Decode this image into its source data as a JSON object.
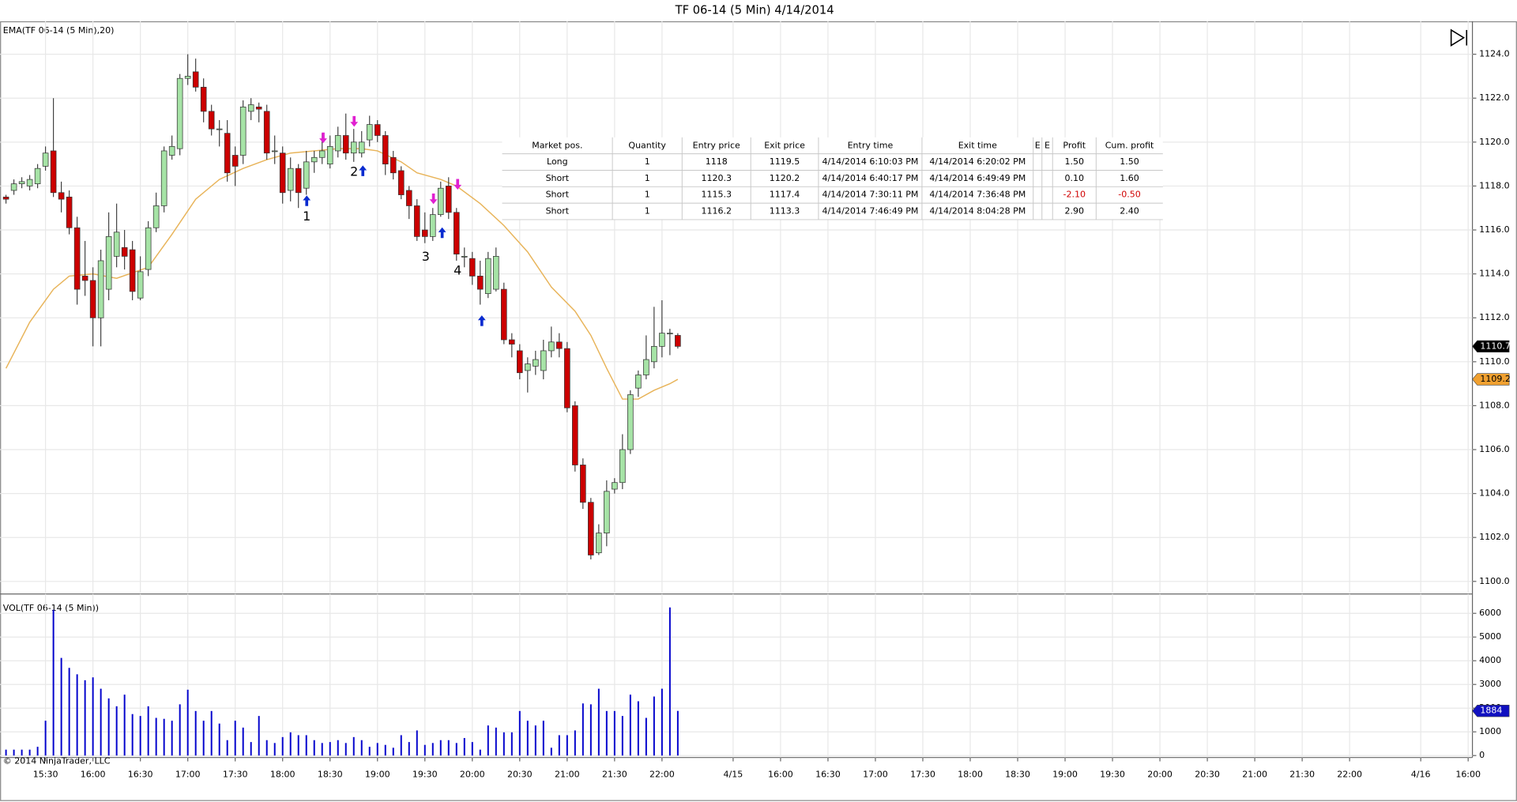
{
  "chart_data": {
    "type": "candlestick",
    "title": "TF 06-14 (5 Min)  4/14/2014",
    "copyright": "© 2014 NinjaTrader, LLC",
    "grid": true,
    "xlim": [
      -5.75,
      180.54
    ],
    "xticks": [
      {
        "value": 0,
        "label": "15:30"
      },
      {
        "value": 6,
        "label": "16:00"
      },
      {
        "value": 12,
        "label": "16:30"
      },
      {
        "value": 18,
        "label": "17:00"
      },
      {
        "value": 24,
        "label": "17:30"
      },
      {
        "value": 30,
        "label": "18:00"
      },
      {
        "value": 36,
        "label": "18:30"
      },
      {
        "value": 42,
        "label": "19:00"
      },
      {
        "value": 48,
        "label": "19:30"
      },
      {
        "value": 54,
        "label": "20:00"
      },
      {
        "value": 60,
        "label": "20:30"
      },
      {
        "value": 66,
        "label": "21:00"
      },
      {
        "value": 72,
        "label": "21:30"
      },
      {
        "value": 78,
        "label": "22:00"
      },
      {
        "value": 87,
        "label": "4/15"
      },
      {
        "value": 93,
        "label": "16:00"
      },
      {
        "value": 99,
        "label": "16:30"
      },
      {
        "value": 105,
        "label": "17:00"
      },
      {
        "value": 111,
        "label": "17:30"
      },
      {
        "value": 117,
        "label": "18:00"
      },
      {
        "value": 123,
        "label": "18:30"
      },
      {
        "value": 129,
        "label": "19:00"
      },
      {
        "value": 135,
        "label": "19:30"
      },
      {
        "value": 141,
        "label": "20:00"
      },
      {
        "value": 147,
        "label": "20:30"
      },
      {
        "value": 153,
        "label": "21:00"
      },
      {
        "value": 159,
        "label": "21:30"
      },
      {
        "value": 165,
        "label": "22:00"
      },
      {
        "value": 174,
        "label": "4/16"
      },
      {
        "value": 180,
        "label": "16:00"
      }
    ],
    "price": {
      "label": "EMA(TF 06-14 (5 Min),20)",
      "color_up": "#a6e3a6",
      "color_down": "#cc0000",
      "ylim": [
        1099.47,
        1125.5
      ],
      "yticks": [
        {
          "value": 1100,
          "label": "1100.0"
        },
        {
          "value": 1102,
          "label": "1102.0"
        },
        {
          "value": 1104,
          "label": "1104.0"
        },
        {
          "value": 1106,
          "label": "1106.0"
        },
        {
          "value": 1108,
          "label": "1108.0"
        },
        {
          "value": 1110,
          "label": "1110.0"
        },
        {
          "value": 1112,
          "label": "1112.0"
        },
        {
          "value": 1114,
          "label": "1114.0"
        },
        {
          "value": 1116,
          "label": "1116.0"
        },
        {
          "value": 1118,
          "label": "1118.0"
        },
        {
          "value": 1120,
          "label": "1120.0"
        },
        {
          "value": 1122,
          "label": "1122.0"
        },
        {
          "value": 1124,
          "label": "1124.0"
        }
      ],
      "x": [
        -5,
        -4,
        -3,
        -2,
        -1,
        0,
        1,
        2,
        3,
        4,
        5,
        6,
        7,
        8,
        9,
        10,
        11,
        12,
        13,
        14,
        15,
        16,
        17,
        18,
        19,
        20,
        21,
        22,
        23,
        24,
        25,
        26,
        27,
        28,
        29,
        30,
        31,
        32,
        33,
        34,
        35,
        36,
        37,
        38,
        39,
        40,
        41,
        42,
        43,
        44,
        45,
        46,
        47,
        48,
        49,
        50,
        51,
        52,
        53,
        54,
        55,
        56,
        57,
        58,
        59,
        60,
        61,
        62,
        63,
        64,
        65,
        66,
        67,
        68,
        69,
        70,
        71,
        72,
        73,
        74,
        75,
        76,
        77,
        78,
        79,
        80
      ],
      "open": [
        1117.5,
        1117.8,
        1118.1,
        1118.0,
        1118.1,
        1118.9,
        1119.6,
        1117.7,
        1117.5,
        1116.1,
        1113.9,
        1113.7,
        1112.0,
        1113.3,
        1114.8,
        1115.2,
        1115.1,
        1112.9,
        1114.2,
        1116.1,
        1117.1,
        1119.4,
        1119.7,
        1122.9,
        1123.2,
        1122.5,
        1121.4,
        1120.6,
        1120.4,
        1119.4,
        1119.4,
        1121.4,
        1121.6,
        1121.4,
        1119.6,
        1119.5,
        1117.8,
        1118.8,
        1117.9,
        1119.1,
        1119.3,
        1119.0,
        1119.6,
        1120.3,
        1119.5,
        1119.5,
        1120.1,
        1120.8,
        1120.3,
        1119.3,
        1118.7,
        1117.8,
        1117.1,
        1116.0,
        1115.7,
        1116.7,
        1118.0,
        1116.8,
        1114.8,
        1114.7,
        1113.9,
        1113.1,
        1113.3,
        1113.3,
        1111.0,
        1110.5,
        1109.6,
        1109.8,
        1109.6,
        1110.5,
        1110.9,
        1110.6,
        1108.0,
        1105.3,
        1103.6,
        1101.3,
        1102.2,
        1104.2,
        1104.5,
        1106.0,
        1108.8,
        1109.4,
        1110.0,
        1110.7,
        1111.3,
        1111.2
      ],
      "high": [
        1117.6,
        1118.3,
        1118.4,
        1118.5,
        1119.0,
        1119.8,
        1122.0,
        1118.2,
        1117.8,
        1116.6,
        1115.5,
        1114.3,
        1115.1,
        1116.8,
        1117.2,
        1116.0,
        1115.5,
        1114.8,
        1116.4,
        1117.7,
        1119.8,
        1120.3,
        1123.1,
        1124.0,
        1123.8,
        1122.9,
        1121.7,
        1121.0,
        1121.0,
        1119.8,
        1121.9,
        1122.0,
        1121.8,
        1121.7,
        1120.3,
        1119.8,
        1119.3,
        1119.0,
        1119.6,
        1119.6,
        1120.4,
        1120.3,
        1120.7,
        1121.3,
        1120.6,
        1120.5,
        1121.2,
        1121.0,
        1120.5,
        1119.6,
        1118.9,
        1118.0,
        1117.4,
        1116.8,
        1117.0,
        1118.2,
        1118.4,
        1117.0,
        1115.2,
        1115.0,
        1114.6,
        1115.0,
        1115.2,
        1113.6,
        1111.3,
        1110.8,
        1110.2,
        1110.5,
        1111.0,
        1111.6,
        1111.3,
        1110.9,
        1108.2,
        1105.6,
        1103.8,
        1102.6,
        1104.6,
        1104.7,
        1106.7,
        1108.7,
        1109.6,
        1111.2,
        1112.5,
        1112.8,
        1111.5,
        1111.3
      ],
      "low": [
        1117.2,
        1117.6,
        1117.9,
        1117.8,
        1117.9,
        1118.7,
        1117.5,
        1116.8,
        1115.8,
        1112.6,
        1113.0,
        1110.7,
        1110.7,
        1112.8,
        1114.3,
        1114.2,
        1112.8,
        1112.8,
        1113.9,
        1115.9,
        1116.8,
        1119.2,
        1119.4,
        1122.6,
        1122.3,
        1120.9,
        1120.3,
        1119.8,
        1118.2,
        1118.0,
        1119.0,
        1121.0,
        1120.9,
        1119.2,
        1119.0,
        1117.2,
        1117.3,
        1117.0,
        1117.6,
        1118.6,
        1119.0,
        1118.8,
        1119.3,
        1119.2,
        1119.1,
        1119.3,
        1119.8,
        1120.0,
        1118.5,
        1118.3,
        1117.4,
        1116.5,
        1115.5,
        1115.4,
        1115.5,
        1116.6,
        1116.5,
        1114.6,
        1114.3,
        1113.5,
        1112.6,
        1112.9,
        1113.2,
        1110.8,
        1110.2,
        1109.2,
        1108.6,
        1109.4,
        1109.2,
        1110.2,
        1110.2,
        1107.7,
        1105.0,
        1103.3,
        1101.0,
        1101.2,
        1101.6,
        1104.0,
        1104.2,
        1105.8,
        1108.4,
        1109.2,
        1109.7,
        1110.2,
        1110.3,
        1110.6
      ],
      "close": [
        1117.4,
        1118.1,
        1118.2,
        1118.3,
        1118.8,
        1119.5,
        1117.7,
        1117.4,
        1116.1,
        1113.3,
        1113.7,
        1112.0,
        1114.6,
        1115.7,
        1115.9,
        1114.8,
        1113.2,
        1114.1,
        1116.1,
        1117.1,
        1119.6,
        1119.8,
        1122.9,
        1123.0,
        1122.5,
        1121.4,
        1120.6,
        1120.6,
        1118.6,
        1118.9,
        1121.6,
        1121.7,
        1121.5,
        1119.5,
        1119.6,
        1117.7,
        1118.8,
        1117.7,
        1119.1,
        1119.3,
        1119.6,
        1119.8,
        1120.3,
        1119.5,
        1120.0,
        1120.0,
        1120.8,
        1120.3,
        1119.0,
        1118.6,
        1117.6,
        1117.1,
        1115.7,
        1115.7,
        1116.7,
        1117.9,
        1116.8,
        1114.9,
        1114.8,
        1113.9,
        1113.3,
        1114.7,
        1114.8,
        1111.0,
        1110.8,
        1109.5,
        1109.9,
        1110.1,
        1110.5,
        1110.9,
        1110.6,
        1107.9,
        1105.3,
        1103.6,
        1101.2,
        1102.2,
        1104.1,
        1104.5,
        1106.0,
        1108.5,
        1109.4,
        1110.1,
        1110.7,
        1111.3,
        1111.3,
        1110.7
      ]
    },
    "ema": {
      "color": "#e8b45a",
      "x": [
        -5,
        -2,
        1,
        3,
        6,
        9,
        13,
        16,
        19,
        22,
        25,
        28,
        31,
        34,
        37,
        40,
        42,
        45,
        47,
        50,
        52,
        55,
        58,
        61,
        64,
        67,
        69,
        71,
        73,
        75,
        77,
        79,
        80
      ],
      "values": [
        1109.7,
        1111.8,
        1113.3,
        1113.9,
        1114.0,
        1113.8,
        1114.3,
        1115.8,
        1117.4,
        1118.3,
        1118.8,
        1119.2,
        1119.5,
        1119.6,
        1119.7,
        1119.7,
        1119.6,
        1119.1,
        1118.6,
        1118.3,
        1118.0,
        1117.2,
        1116.2,
        1115.0,
        1113.4,
        1112.3,
        1111.2,
        1109.7,
        1108.3,
        1108.3,
        1108.7,
        1109.0,
        1109.2
      ]
    },
    "volume": {
      "type": "bar",
      "label": "VOL(TF 06-14 (5 Min))",
      "color": "#0000cc",
      "ylim": [
        -82,
        6816
      ],
      "yticks": [
        0,
        1000,
        2000,
        3000,
        4000,
        5000,
        6000
      ],
      "values": [
        250,
        250,
        250,
        250,
        370,
        1470,
        6150,
        4120,
        3700,
        3430,
        3180,
        3300,
        2820,
        2410,
        2080,
        2570,
        1750,
        1670,
        2080,
        1590,
        1550,
        1470,
        2160,
        2780,
        1880,
        1470,
        1880,
        1350,
        650,
        1470,
        1180,
        570,
        1670,
        650,
        530,
        780,
        980,
        860,
        860,
        650,
        530,
        570,
        650,
        530,
        780,
        650,
        370,
        530,
        450,
        330,
        860,
        570,
        1060,
        450,
        530,
        650,
        650,
        530,
        740,
        570,
        250,
        1270,
        1180,
        980,
        980,
        1880,
        1470,
        1270,
        1470,
        330,
        860,
        860,
        1060,
        2200,
        2160,
        2820,
        1880,
        1880,
        1670,
        2570,
        2290,
        1590,
        2490,
        2820,
        6250,
        1884
      ]
    },
    "trade_labels": [
      "1",
      "2",
      "3",
      "4"
    ],
    "trades": {
      "columns": [
        "Market pos.",
        "Quantity",
        "Entry price",
        "Exit price",
        "Entry time",
        "Exit time",
        "E",
        "E",
        "Profit",
        "Cum. profit"
      ],
      "rows": [
        [
          "Long",
          "1",
          "1118",
          "1119.5",
          "4/14/2014 6:10:03 PM",
          "4/14/2014 6:20:02 PM",
          "",
          "",
          "1.50",
          "1.50"
        ],
        [
          "Short",
          "1",
          "1120.3",
          "1120.2",
          "4/14/2014 6:40:17 PM",
          "4/14/2014 6:49:49 PM",
          "",
          "",
          "0.10",
          "1.60"
        ],
        [
          "Short",
          "1",
          "1115.3",
          "1117.4",
          "4/14/2014 7:30:11 PM",
          "4/14/2014 7:36:48 PM",
          "",
          "",
          "-2.10",
          "-0.50"
        ],
        [
          "Short",
          "1",
          "1116.2",
          "1113.3",
          "4/14/2014 7:46:49 PM",
          "4/14/2014 8:04:28 PM",
          "",
          "",
          "2.90",
          "2.40"
        ]
      ]
    }
  }
}
